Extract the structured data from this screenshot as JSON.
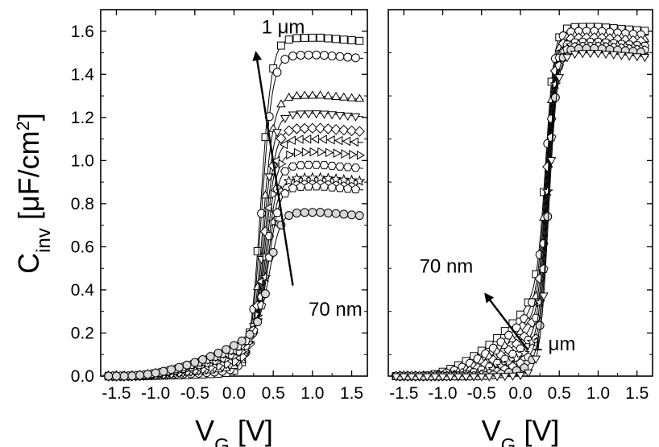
{
  "chart_data": [
    {
      "type": "line",
      "panel": "left",
      "xlabel": "V_G [V]",
      "ylabel": "C_inv [μF/cm2]",
      "xlim": [
        -1.7,
        1.7
      ],
      "ylim": [
        0.0,
        1.7
      ],
      "xticks": [
        "-1.5",
        "-1.0",
        "-0.5",
        "0.0",
        "0.5",
        "1.0",
        "1.5"
      ],
      "yticks": [
        "0.0",
        "0.2",
        "0.4",
        "0.6",
        "0.8",
        "1.0",
        "1.2",
        "1.4",
        "1.6"
      ],
      "grid": false,
      "annotations": [
        {
          "text": "1 μm",
          "x": 0.35,
          "y": 1.59
        },
        {
          "text": "70 nm",
          "x": 0.95,
          "y": 0.28
        }
      ],
      "arrow": {
        "from": [
          0.75,
          0.42
        ],
        "to": [
          0.28,
          1.5
        ]
      },
      "series": [
        {
          "marker": "square",
          "plateau": 1.57
        },
        {
          "marker": "circle",
          "plateau": 1.49
        },
        {
          "marker": "triangle-up",
          "plateau": 1.3
        },
        {
          "marker": "triangle-down",
          "plateau": 1.22
        },
        {
          "marker": "diamond",
          "plateau": 1.15
        },
        {
          "marker": "triangle-left",
          "plateau": 1.1
        },
        {
          "marker": "triangle-right",
          "plateau": 1.04
        },
        {
          "marker": "hexagon",
          "plateau": 0.98
        },
        {
          "marker": "star",
          "plateau": 0.92
        },
        {
          "marker": "pentagon",
          "plateau": 0.88
        },
        {
          "marker": "circle-hatched",
          "plateau": 0.76
        }
      ]
    },
    {
      "type": "line",
      "panel": "right",
      "xlabel": "V_G [V]",
      "xlim": [
        -1.7,
        1.7
      ],
      "ylim": [
        0.0,
        1.7
      ],
      "xticks": [
        "-1.5",
        "-1.0",
        "-0.5",
        "0.0",
        "0.5",
        "1.0",
        "1.5"
      ],
      "grid": false,
      "annotations": [
        {
          "text": "70 nm",
          "x": -1.3,
          "y": 0.48
        },
        {
          "text": "1 μm",
          "x": 0.15,
          "y": 0.12
        }
      ],
      "arrow": {
        "from": [
          0.1,
          0.12
        ],
        "to": [
          -0.45,
          0.38
        ]
      },
      "series": [
        {
          "marker": "square",
          "plateau": 1.62
        },
        {
          "marker": "circle",
          "plateau": 1.6
        },
        {
          "marker": "triangle-up",
          "plateau": 1.58
        },
        {
          "marker": "diamond",
          "plateau": 1.57
        },
        {
          "marker": "hexagon",
          "plateau": 1.55
        },
        {
          "marker": "star",
          "plateau": 1.54
        },
        {
          "marker": "pentagon",
          "plateau": 1.53
        },
        {
          "marker": "circle-hatched",
          "plateau": 1.52
        },
        {
          "marker": "triangle-down",
          "plateau": 1.5
        }
      ]
    }
  ]
}
